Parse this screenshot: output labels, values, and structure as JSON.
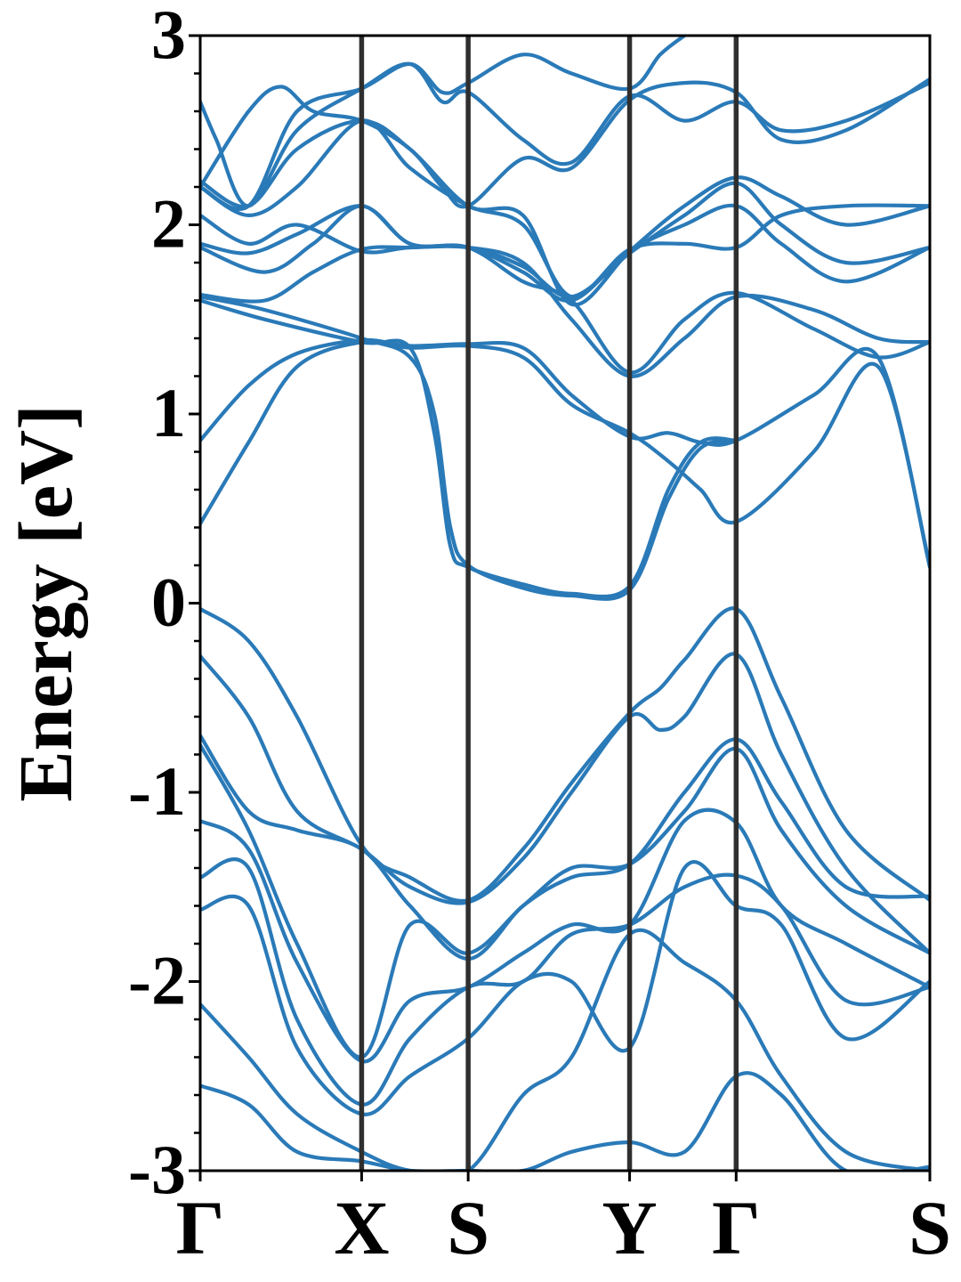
{
  "chart_data": {
    "type": "line",
    "title": "",
    "xlabel": "",
    "ylabel": "Energy [eV]",
    "ylim": [
      -3,
      3
    ],
    "yticks": [
      "3",
      "2",
      "1",
      "0",
      "-1",
      "-2",
      "-3"
    ],
    "kpath": [
      {
        "label": "Γ",
        "pos": 0.0
      },
      {
        "label": "X",
        "pos": 1.0
      },
      {
        "label": "S",
        "pos": 1.66
      },
      {
        "label": "Y",
        "pos": 2.66
      },
      {
        "label": "Γ",
        "pos": 3.32
      },
      {
        "label": "S",
        "pos": 4.52
      }
    ],
    "band_color": "#2a7ab8",
    "series": [
      {
        "x": [
          0,
          0.3,
          0.6,
          1.0,
          1.3,
          1.66,
          2.0,
          2.3,
          2.66,
          2.9,
          3.1,
          3.32,
          3.8,
          4.2,
          4.52
        ],
        "y": [
          0.42,
          0.85,
          1.25,
          1.38,
          1.35,
          1.36,
          1.3,
          1.05,
          0.9,
          0.75,
          0.6,
          0.43,
          0.8,
          1.25,
          0.2
        ]
      },
      {
        "x": [
          0,
          0.3,
          0.6,
          1.0,
          1.3,
          1.66,
          2.0,
          2.3,
          2.66,
          2.9,
          3.1,
          3.32,
          3.8,
          4.2,
          4.52
        ],
        "y": [
          0.86,
          1.15,
          1.32,
          1.39,
          1.36,
          1.37,
          1.35,
          1.1,
          0.88,
          0.9,
          0.85,
          0.86,
          1.1,
          1.3,
          0.19
        ]
      },
      {
        "x": [
          0,
          0.4,
          1.0,
          1.3,
          1.45,
          1.55,
          1.66,
          2.0,
          2.3,
          2.66,
          2.9,
          3.1,
          3.32
        ],
        "y": [
          1.6,
          1.5,
          1.38,
          1.35,
          0.9,
          0.3,
          0.19,
          0.1,
          0.05,
          0.09,
          0.6,
          0.85,
          0.86
        ]
      },
      {
        "x": [
          0,
          0.4,
          1.0,
          1.3,
          1.45,
          1.55,
          1.66,
          2.0,
          2.3,
          2.66,
          2.9,
          3.1,
          3.32
        ],
        "y": [
          1.62,
          1.55,
          1.4,
          1.3,
          1.0,
          0.4,
          0.2,
          0.08,
          0.04,
          0.07,
          0.55,
          0.82,
          0.86
        ]
      },
      {
        "x": [
          0,
          0.4,
          0.7,
          1.0,
          1.3,
          1.66,
          2.0,
          2.3,
          2.66,
          3.0,
          3.32,
          3.8,
          4.2,
          4.52
        ],
        "y": [
          1.63,
          1.6,
          1.75,
          1.87,
          1.88,
          1.88,
          1.8,
          1.5,
          1.2,
          1.4,
          1.62,
          1.55,
          1.4,
          1.38
        ]
      },
      {
        "x": [
          0,
          0.4,
          0.7,
          1.0,
          1.3,
          1.66,
          2.0,
          2.3,
          2.66,
          3.0,
          3.32,
          3.8,
          4.2,
          4.52
        ],
        "y": [
          1.88,
          1.75,
          1.9,
          2.1,
          1.9,
          1.88,
          1.7,
          1.6,
          1.22,
          1.5,
          1.64,
          1.45,
          1.3,
          1.38
        ]
      },
      {
        "x": [
          0,
          0.3,
          0.6,
          1.0,
          1.3,
          1.66,
          2.0,
          2.3,
          2.66,
          3.0,
          3.32,
          3.6,
          4.0,
          4.52
        ],
        "y": [
          1.9,
          1.85,
          1.95,
          2.1,
          1.9,
          1.88,
          1.75,
          1.6,
          1.86,
          2.0,
          2.1,
          1.9,
          1.7,
          1.88
        ]
      },
      {
        "x": [
          0,
          0.3,
          0.6,
          1.0,
          1.3,
          1.66,
          2.0,
          2.3,
          2.66,
          3.0,
          3.32,
          3.6,
          4.0,
          4.52
        ],
        "y": [
          2.05,
          1.9,
          2.0,
          1.86,
          1.88,
          1.88,
          1.78,
          1.62,
          1.85,
          2.05,
          2.22,
          2.0,
          1.8,
          1.88
        ]
      },
      {
        "x": [
          0,
          0.3,
          0.6,
          1.0,
          1.3,
          1.66,
          2.0,
          2.3,
          2.66,
          3.0,
          3.32,
          3.6,
          4.0,
          4.52
        ],
        "y": [
          2.2,
          2.05,
          2.2,
          2.55,
          2.3,
          2.1,
          2.0,
          1.62,
          1.87,
          1.9,
          1.88,
          2.05,
          2.1,
          2.1
        ]
      },
      {
        "x": [
          0,
          0.3,
          0.6,
          1.0,
          1.3,
          1.66,
          2.0,
          2.3,
          2.66,
          3.0,
          3.32,
          3.6,
          4.0,
          4.52
        ],
        "y": [
          2.23,
          2.1,
          2.4,
          2.55,
          2.4,
          2.1,
          2.05,
          1.58,
          1.86,
          2.1,
          2.25,
          2.15,
          2.0,
          2.1
        ]
      },
      {
        "x": [
          0,
          0.1,
          0.3,
          0.6,
          1.0,
          1.3,
          1.5,
          1.66,
          2.0,
          2.3,
          2.66,
          3.0,
          3.32,
          3.6,
          4.0,
          4.52
        ],
        "y": [
          2.65,
          2.45,
          2.1,
          2.5,
          2.72,
          2.85,
          2.65,
          2.7,
          2.45,
          2.33,
          2.68,
          2.55,
          2.65,
          2.5,
          2.55,
          2.75
        ]
      },
      {
        "x": [
          0,
          0.3,
          0.6,
          1.0,
          1.3,
          1.5,
          1.66,
          2.0,
          2.3,
          2.66,
          2.85,
          3.0
        ],
        "y": [
          2.2,
          2.1,
          2.6,
          2.72,
          2.85,
          2.7,
          2.75,
          2.9,
          2.8,
          2.72,
          2.9,
          3.0
        ]
      },
      {
        "x": [
          0,
          0.3,
          0.5,
          0.7,
          1.0,
          1.3,
          1.5,
          1.66,
          2.0,
          2.3,
          2.66,
          3.0,
          3.32,
          3.6,
          4.0,
          4.52
        ],
        "y": [
          2.2,
          2.6,
          2.73,
          2.6,
          2.55,
          2.4,
          2.2,
          2.1,
          2.35,
          2.3,
          2.66,
          2.75,
          2.7,
          2.45,
          2.5,
          2.77
        ]
      },
      {
        "x": [
          0,
          0.3,
          0.6,
          1.0,
          1.3,
          1.66,
          2.0,
          2.3,
          2.66,
          2.85,
          3.0,
          3.32,
          3.6,
          4.0,
          4.52
        ],
        "y": [
          -0.03,
          -0.2,
          -0.6,
          -1.28,
          -1.45,
          -1.57,
          -1.3,
          -0.95,
          -0.58,
          -0.45,
          -0.3,
          -0.03,
          -0.5,
          -1.2,
          -1.57
        ]
      },
      {
        "x": [
          0,
          0.3,
          0.6,
          1.0,
          1.3,
          1.66,
          2.0,
          2.3,
          2.66,
          2.85,
          3.0,
          3.32,
          3.6,
          4.0,
          4.52
        ],
        "y": [
          -0.28,
          -0.6,
          -1.1,
          -1.3,
          -1.5,
          -1.58,
          -1.35,
          -1.0,
          -0.6,
          -0.67,
          -0.6,
          -0.27,
          -0.8,
          -1.4,
          -1.85
        ]
      },
      {
        "x": [
          0,
          0.3,
          0.6,
          1.0,
          1.3,
          1.66,
          2.0,
          2.3,
          2.66,
          3.0,
          3.32,
          3.6,
          4.0,
          4.52
        ],
        "y": [
          -0.7,
          -1.1,
          -1.2,
          -1.3,
          -1.6,
          -1.88,
          -1.6,
          -1.45,
          -1.38,
          -1.0,
          -0.72,
          -1.05,
          -1.5,
          -1.55
        ]
      },
      {
        "x": [
          0,
          0.3,
          0.6,
          1.0,
          1.3,
          1.66,
          2.0,
          2.3,
          2.66,
          3.0,
          3.32,
          3.6,
          4.0,
          4.52
        ],
        "y": [
          -0.75,
          -1.2,
          -1.8,
          -2.4,
          -1.7,
          -1.85,
          -1.6,
          -1.4,
          -1.38,
          -1.1,
          -0.77,
          -1.2,
          -1.6,
          -1.85
        ]
      },
      {
        "x": [
          0,
          0.3,
          0.6,
          1.0,
          1.3,
          1.66,
          2.0,
          2.3,
          2.66,
          3.0,
          3.32,
          3.6,
          4.0,
          4.52
        ],
        "y": [
          -1.15,
          -1.3,
          -1.9,
          -2.42,
          -2.1,
          -2.03,
          -1.85,
          -1.7,
          -1.7,
          -1.15,
          -1.16,
          -1.6,
          -1.8,
          -2.03
        ]
      },
      {
        "x": [
          0,
          0.3,
          0.6,
          1.0,
          1.3,
          1.66,
          2.0,
          2.3,
          2.66,
          3.0,
          3.32,
          3.6,
          4.0,
          4.52
        ],
        "y": [
          -1.45,
          -1.4,
          -2.2,
          -2.65,
          -2.3,
          -2.03,
          -2.0,
          -1.75,
          -1.7,
          -1.5,
          -1.44,
          -1.6,
          -2.1,
          -2.03
        ]
      },
      {
        "x": [
          0,
          0.3,
          0.6,
          1.0,
          1.3,
          1.66,
          2.0,
          2.3,
          2.66,
          3.0,
          3.32,
          3.6,
          4.0,
          4.52
        ],
        "y": [
          -1.62,
          -1.6,
          -2.35,
          -2.7,
          -2.5,
          -2.3,
          -2.0,
          -2.0,
          -2.35,
          -1.4,
          -1.6,
          -1.7,
          -2.3,
          -2.0
        ]
      },
      {
        "x": [
          0,
          0.3,
          0.6,
          1.0,
          1.3,
          1.66,
          2.0,
          2.3,
          2.66,
          3.0,
          3.32,
          3.6,
          4.0,
          4.52
        ],
        "y": [
          -2.12,
          -2.4,
          -2.7,
          -2.9,
          -3.0,
          -3.0,
          -2.6,
          -2.4,
          -1.75,
          -1.9,
          -2.1,
          -2.5,
          -2.9,
          -3.0
        ]
      },
      {
        "x": [
          0,
          0.3,
          0.6,
          1.0,
          1.3,
          1.66,
          2.0,
          2.3,
          2.66,
          3.0,
          3.32,
          3.6,
          4.0,
          4.52
        ],
        "y": [
          -2.55,
          -2.65,
          -2.9,
          -2.95,
          -3.0,
          -3.0,
          -3.0,
          -2.9,
          -2.85,
          -2.9,
          -2.5,
          -2.6,
          -3.0,
          -2.98
        ]
      }
    ]
  }
}
